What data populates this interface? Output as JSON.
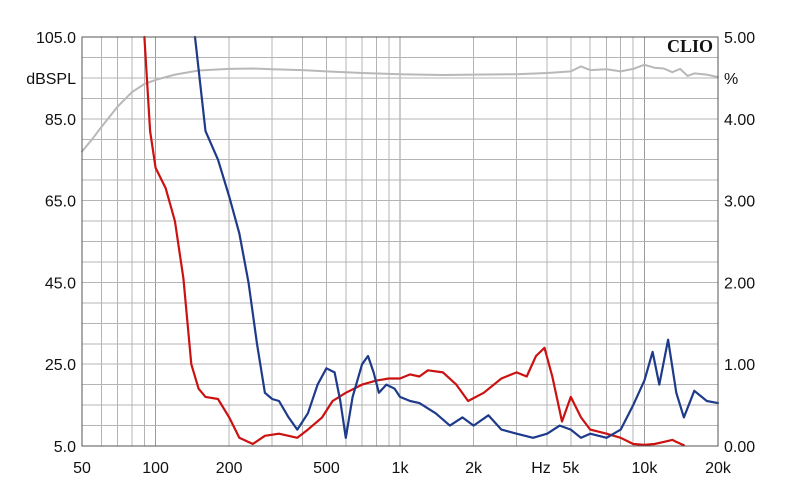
{
  "brand": "CLIO",
  "chart_data": {
    "type": "line",
    "x_scale": "log",
    "xlim": [
      50,
      20000
    ],
    "ylim_left": [
      5,
      105
    ],
    "ylim_right": [
      0,
      5
    ],
    "ylabel_left": "dBSPL",
    "ylabel_right": "%",
    "x_unit_label": "Hz",
    "grid": true,
    "legend": "none",
    "x_ticks": [
      {
        "value": 50,
        "label": "50"
      },
      {
        "value": 100,
        "label": "100"
      },
      {
        "value": 200,
        "label": "200"
      },
      {
        "value": 500,
        "label": "500"
      },
      {
        "value": 1000,
        "label": "1k"
      },
      {
        "value": 2000,
        "label": "2k"
      },
      {
        "value": 5000,
        "label": "5k"
      },
      {
        "value": 10000,
        "label": "10k"
      },
      {
        "value": 20000,
        "label": "20k"
      }
    ],
    "y_ticks_left": [
      {
        "value": 105,
        "label": "105.0"
      },
      {
        "value": 85,
        "label": "85.0"
      },
      {
        "value": 65,
        "label": "65.0"
      },
      {
        "value": 45,
        "label": "45.0"
      },
      {
        "value": 25,
        "label": "25.0"
      },
      {
        "value": 5,
        "label": "5.0"
      }
    ],
    "y_ticks_right": [
      {
        "value": 5,
        "label": "5.00"
      },
      {
        "value": 4,
        "label": "4.00"
      },
      {
        "value": 3,
        "label": "3.00"
      },
      {
        "value": 2,
        "label": "2.00"
      },
      {
        "value": 1,
        "label": "1.00"
      },
      {
        "value": 0,
        "label": "0.00"
      }
    ],
    "series": [
      {
        "color": "#b8b8b8",
        "axis": "left",
        "points": [
          [
            50,
            77
          ],
          [
            55,
            80
          ],
          [
            60,
            83
          ],
          [
            70,
            88
          ],
          [
            80,
            91.5
          ],
          [
            90,
            93.5
          ],
          [
            100,
            94.5
          ],
          [
            120,
            95.8
          ],
          [
            150,
            96.8
          ],
          [
            200,
            97.2
          ],
          [
            250,
            97.3
          ],
          [
            300,
            97.1
          ],
          [
            400,
            96.9
          ],
          [
            500,
            96.6
          ],
          [
            700,
            96.2
          ],
          [
            1000,
            95.9
          ],
          [
            1500,
            95.7
          ],
          [
            2000,
            95.8
          ],
          [
            3000,
            95.9
          ],
          [
            4000,
            96.2
          ],
          [
            5000,
            96.6
          ],
          [
            5500,
            97.8
          ],
          [
            6000,
            96.9
          ],
          [
            7000,
            97.1
          ],
          [
            8000,
            96.6
          ],
          [
            9000,
            97.2
          ],
          [
            10000,
            98.2
          ],
          [
            11000,
            97.5
          ],
          [
            12000,
            97.3
          ],
          [
            13000,
            96.4
          ],
          [
            14000,
            97.2
          ],
          [
            15000,
            95.5
          ],
          [
            16000,
            96.1
          ],
          [
            18000,
            95.8
          ],
          [
            20000,
            95.2
          ]
        ]
      },
      {
        "color": "#cc1111",
        "axis": "left",
        "points": [
          [
            90,
            105
          ],
          [
            95,
            82
          ],
          [
            100,
            73
          ],
          [
            110,
            68
          ],
          [
            120,
            60
          ],
          [
            130,
            46
          ],
          [
            140,
            25
          ],
          [
            150,
            19
          ],
          [
            160,
            17
          ],
          [
            180,
            16.5
          ],
          [
            200,
            12
          ],
          [
            220,
            7
          ],
          [
            250,
            5.5
          ],
          [
            280,
            7.5
          ],
          [
            320,
            8
          ],
          [
            380,
            7
          ],
          [
            420,
            9
          ],
          [
            480,
            12
          ],
          [
            530,
            16
          ],
          [
            600,
            18
          ],
          [
            700,
            20
          ],
          [
            800,
            21
          ],
          [
            900,
            21.5
          ],
          [
            1000,
            21.5
          ],
          [
            1100,
            22.5
          ],
          [
            1200,
            22
          ],
          [
            1300,
            23.5
          ],
          [
            1500,
            23
          ],
          [
            1700,
            20
          ],
          [
            1900,
            16
          ],
          [
            2200,
            18
          ],
          [
            2600,
            21.5
          ],
          [
            3000,
            23
          ],
          [
            3300,
            22
          ],
          [
            3600,
            27
          ],
          [
            3900,
            29
          ],
          [
            4200,
            22
          ],
          [
            4600,
            11
          ],
          [
            5000,
            17
          ],
          [
            5500,
            12
          ],
          [
            6000,
            9
          ],
          [
            7000,
            8
          ],
          [
            8000,
            7
          ],
          [
            9000,
            5.5
          ],
          [
            10000,
            5.3
          ],
          [
            11000,
            5.5
          ],
          [
            12000,
            6
          ],
          [
            13000,
            6.5
          ],
          [
            13500,
            6
          ],
          [
            14500,
            5.2
          ]
        ]
      },
      {
        "color": "#1e3a8a",
        "axis": "left",
        "points": [
          [
            145,
            105
          ],
          [
            160,
            82
          ],
          [
            180,
            75
          ],
          [
            200,
            66
          ],
          [
            220,
            57
          ],
          [
            240,
            45
          ],
          [
            260,
            30
          ],
          [
            280,
            18
          ],
          [
            300,
            16.5
          ],
          [
            320,
            16
          ],
          [
            350,
            12
          ],
          [
            380,
            9
          ],
          [
            420,
            13
          ],
          [
            460,
            20
          ],
          [
            500,
            24
          ],
          [
            540,
            23
          ],
          [
            570,
            16
          ],
          [
            600,
            7
          ],
          [
            640,
            17
          ],
          [
            700,
            25
          ],
          [
            740,
            27
          ],
          [
            780,
            23
          ],
          [
            820,
            18
          ],
          [
            880,
            20
          ],
          [
            950,
            19
          ],
          [
            1000,
            17
          ],
          [
            1100,
            16
          ],
          [
            1200,
            15.5
          ],
          [
            1400,
            13
          ],
          [
            1600,
            10
          ],
          [
            1800,
            12
          ],
          [
            2000,
            10
          ],
          [
            2300,
            12.5
          ],
          [
            2600,
            9
          ],
          [
            3000,
            8
          ],
          [
            3500,
            7
          ],
          [
            4000,
            8
          ],
          [
            4500,
            10
          ],
          [
            5000,
            9
          ],
          [
            5500,
            7
          ],
          [
            6000,
            8
          ],
          [
            7000,
            7
          ],
          [
            8000,
            9
          ],
          [
            9000,
            15
          ],
          [
            10000,
            21
          ],
          [
            10800,
            28
          ],
          [
            11500,
            20
          ],
          [
            12500,
            31
          ],
          [
            13500,
            18
          ],
          [
            14500,
            12
          ],
          [
            16000,
            18.5
          ],
          [
            18000,
            16
          ],
          [
            20000,
            15.5
          ]
        ]
      }
    ]
  }
}
